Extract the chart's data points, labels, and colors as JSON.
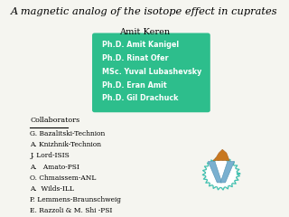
{
  "title": "A magnetic analog of the isotope effect in cuprates",
  "author": "Amit Keren",
  "box_color": "#2dbe8c",
  "box_text_color": "#ffffff",
  "box_lines": [
    "Ph.D. Amit Kanigel",
    "Ph.D. Rinat Ofer",
    "MSc. Yuval Lubashevsky",
    "Ph.D. Eran Amit",
    "Ph.D. Gil Drachuck"
  ],
  "collab_header": "Collaborators",
  "collaborators": [
    "G. Bazalitski-Technion",
    "A. Knizhnik-Technion",
    "J. Lord-ISIS",
    "A.   Amato-PSI",
    "O. Chmaissem-ANL",
    "A.  Wilds-ILL",
    "P. Lemmens-Braunschweig",
    "E. Razzoli & M. Shi -PSI"
  ],
  "bg_color": "#f5f5f0"
}
